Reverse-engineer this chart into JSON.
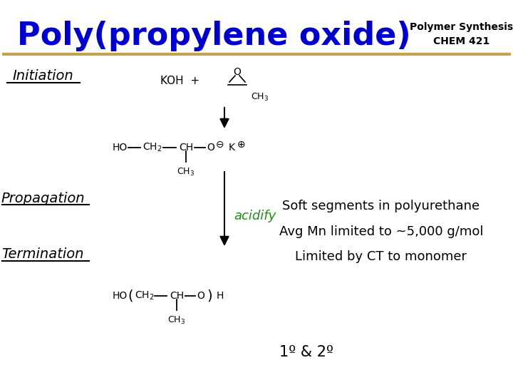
{
  "title": "Poly(propylene oxide)",
  "title_color": "#0000CC",
  "title_fontsize": 32,
  "subtitle": "Polymer Synthesis\nCHEM 421",
  "subtitle_color": "#000000",
  "subtitle_fontsize": 10,
  "bg_color": "#FFFFFF",
  "separator_color": "#C8A050",
  "initiation_label": "Initiation",
  "propagation_label": "Propagation",
  "termination_label": "Termination",
  "label_color": "#000000",
  "label_fontsize": 14,
  "acidify_color": "#228B22",
  "soft_segments_text": "Soft segments in polyurethane",
  "avg_mn_text": "Avg Mn limited to ~5,000 g/mol",
  "limited_ct_text": "Limited by CT to monomer",
  "degree_text": "1º & 2º",
  "note_fontsize": 13,
  "note_color": "#000000"
}
